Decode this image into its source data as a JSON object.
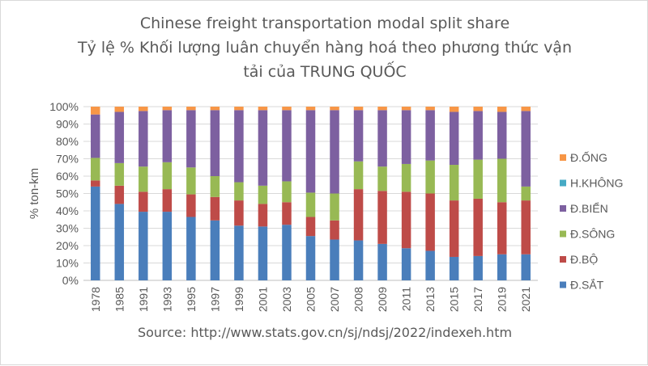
{
  "chart_data": {
    "type": "bar",
    "stacked": true,
    "percent": true,
    "title": [
      "Chinese freight transportation modal split share",
      "Tỷ lệ % Khối lượng luân chuyển hàng hoá theo phương thức vận",
      "tải của TRUNG QUỐC"
    ],
    "xlabel": "",
    "ylabel": "% ton-km",
    "ylim": [
      0,
      100
    ],
    "yticks": [
      "0%",
      "10%",
      "20%",
      "30%",
      "40%",
      "50%",
      "60%",
      "70%",
      "80%",
      "90%",
      "100%"
    ],
    "grid": true,
    "legend_position": "right",
    "source": "Source: http://www.stats.gov.cn/sj/ndsj/2022/indexeh.htm",
    "categories": [
      "1978",
      "1985",
      "1991",
      "1993",
      "1995",
      "1997",
      "1999",
      "2001",
      "2003",
      "2005",
      "2007",
      "2008",
      "2009",
      "2011",
      "2013",
      "2015",
      "2017",
      "2019",
      "2021"
    ],
    "series": [
      {
        "name": "Đ.SẮT",
        "color": "#4a7ebb",
        "values": [
          54,
          44,
          39.5,
          39.5,
          36.5,
          34.5,
          31.5,
          31,
          32,
          25.5,
          23.5,
          23,
          21,
          18.5,
          17,
          13.5,
          14,
          15,
          15
        ]
      },
      {
        "name": "Đ.BỘ",
        "color": "#be4b48",
        "values": [
          3.5,
          10.5,
          11.5,
          13,
          13,
          13.5,
          14.5,
          13,
          13,
          11,
          11,
          29.5,
          30.5,
          32.5,
          33,
          32.5,
          33,
          30,
          31
        ]
      },
      {
        "name": "Đ.SÔNG",
        "color": "#98b954",
        "values": [
          13,
          13,
          14.5,
          15.5,
          15.5,
          12,
          10.5,
          10.5,
          12,
          14,
          15.5,
          16,
          14,
          16,
          19,
          20.5,
          22.5,
          25,
          8
        ]
      },
      {
        "name": "Đ.BIỂN",
        "color": "#7d60a0",
        "values": [
          25,
          29.5,
          32,
          30,
          33,
          38,
          41.5,
          43.5,
          41,
          47.5,
          48,
          29.5,
          32.5,
          31,
          29,
          30.5,
          28,
          27,
          43.5
        ]
      },
      {
        "name": "H.KHÔNG",
        "color": "#46aac5",
        "values": [
          0,
          0,
          0,
          0,
          0,
          0,
          0,
          0,
          0,
          0,
          0,
          0,
          0,
          0,
          0,
          0,
          0,
          0,
          0
        ]
      },
      {
        "name": "Đ.ỐNG",
        "color": "#f79646",
        "values": [
          4.5,
          3,
          2.5,
          2,
          2,
          2,
          2,
          2,
          2,
          2,
          2,
          2,
          2,
          2,
          2,
          3,
          2.5,
          3,
          2.5
        ]
      }
    ]
  }
}
